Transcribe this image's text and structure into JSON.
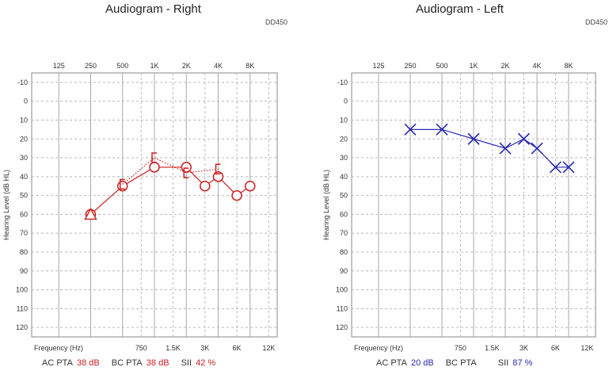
{
  "charts": {
    "right": {
      "title": "Audiogram - Right",
      "device": "DD450",
      "summary": {
        "ac_label": "AC PTA",
        "ac_value": "38 dB",
        "bc_label": "BC PTA",
        "bc_value": "38 dB",
        "sii_label": "SII",
        "sii_value": "42 %"
      }
    },
    "left": {
      "title": "Audiogram - Left",
      "device": "DD450",
      "summary": {
        "ac_label": "AC PTA",
        "ac_value": "20 dB",
        "bc_label": "BC PTA",
        "bc_value": "",
        "sii_label": "SII",
        "sii_value": "87 %"
      }
    }
  },
  "chart_data": [
    {
      "type": "line",
      "title": "Audiogram - Right",
      "xlabel": "Frequency (Hz)",
      "ylabel": "Hearing Level (dB HL)",
      "x_ticks_top": [
        "125",
        "250",
        "500",
        "1K",
        "2K",
        "4K",
        "8K"
      ],
      "x_ticks_bottom": [
        "750",
        "1.5K",
        "3K",
        "6K",
        "12K"
      ],
      "y_ticks": [
        -10,
        0,
        10,
        20,
        30,
        40,
        50,
        60,
        70,
        80,
        90,
        100,
        110,
        120
      ],
      "ylim": [
        -15,
        125
      ],
      "y_inverted": true,
      "grid": true,
      "color": "#cc1f1f",
      "series": [
        {
          "marker": "circle",
          "style": "solid",
          "points": [
            [
              250,
              60
            ],
            [
              500,
              45
            ],
            [
              1000,
              35
            ],
            [
              2000,
              35
            ],
            [
              3000,
              45
            ],
            [
              4000,
              40
            ],
            [
              6000,
              50
            ],
            [
              8000,
              45
            ]
          ]
        },
        {
          "marker": "bracket",
          "style": "dotted",
          "points": [
            [
              500,
              44
            ],
            [
              1000,
              30
            ],
            [
              2000,
              38
            ],
            [
              4000,
              36
            ]
          ]
        }
      ],
      "symbols": [
        {
          "marker": "triangle",
          "x": 250,
          "y": 60
        }
      ]
    },
    {
      "type": "line",
      "title": "Audiogram - Left",
      "xlabel": "Frequency (Hz)",
      "ylabel": "Hearing Level (dB HL)",
      "x_ticks_top": [
        "125",
        "250",
        "500",
        "1K",
        "2K",
        "4K",
        "8K"
      ],
      "x_ticks_bottom": [
        "750",
        "1.5K",
        "3K",
        "6K",
        "12K"
      ],
      "y_ticks": [
        -10,
        0,
        10,
        20,
        30,
        40,
        50,
        60,
        70,
        80,
        90,
        100,
        110,
        120
      ],
      "ylim": [
        -15,
        125
      ],
      "y_inverted": true,
      "grid": true,
      "color": "#2a2ab0",
      "series": [
        {
          "marker": "x",
          "style": "solid",
          "points": [
            [
              250,
              15
            ],
            [
              500,
              15
            ],
            [
              1000,
              20
            ],
            [
              2000,
              25
            ],
            [
              3000,
              20
            ],
            [
              4000,
              25
            ],
            [
              6000,
              35
            ],
            [
              8000,
              35
            ]
          ]
        }
      ]
    }
  ]
}
